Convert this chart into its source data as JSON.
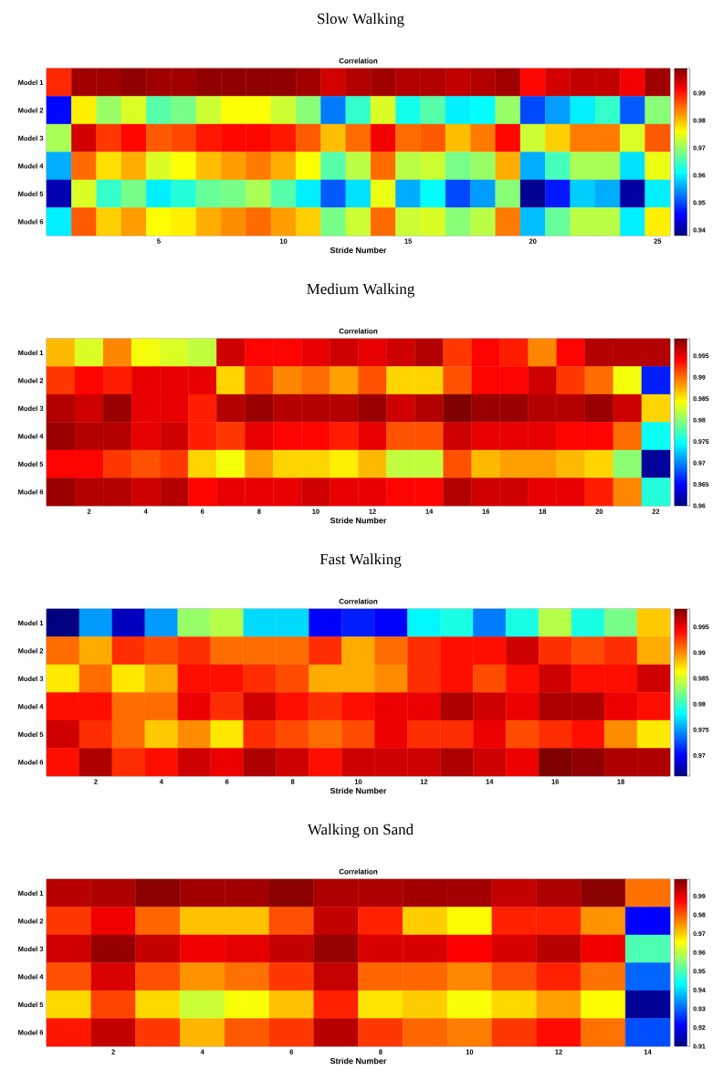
{
  "chart_data": [
    {
      "type": "heatmap",
      "title": "Slow Walking",
      "subtitle": "Correlation",
      "xlabel": "Stride Number",
      "x": [
        1,
        2,
        3,
        4,
        5,
        6,
        7,
        8,
        9,
        10,
        11,
        12,
        13,
        14,
        15,
        16,
        17,
        18,
        19,
        20,
        21,
        22,
        23,
        24,
        25
      ],
      "xlim": [
        0.5,
        25.5
      ],
      "xticks": [
        5,
        10,
        15,
        20,
        25
      ],
      "y_categories": [
        "Model 1",
        "Model 2",
        "Model 3",
        "Model 4",
        "Model 5",
        "Model 6"
      ],
      "cells": [
        [
          0.989,
          0.997,
          0.997,
          0.998,
          0.997,
          0.997,
          0.998,
          0.998,
          0.998,
          0.998,
          0.997,
          0.994,
          0.996,
          0.997,
          0.996,
          0.996,
          0.995,
          0.996,
          0.997,
          0.991,
          0.994,
          0.995,
          0.995,
          0.992,
          0.997
        ],
        [
          0.946,
          0.977,
          0.97,
          0.974,
          0.966,
          0.968,
          0.973,
          0.976,
          0.976,
          0.973,
          0.969,
          0.953,
          0.964,
          0.974,
          0.962,
          0.966,
          0.96,
          0.961,
          0.97,
          0.95,
          0.955,
          0.96,
          0.964,
          0.951,
          0.969
        ],
        [
          0.971,
          0.994,
          0.988,
          0.991,
          0.986,
          0.987,
          0.99,
          0.991,
          0.991,
          0.99,
          0.986,
          0.98,
          0.985,
          0.992,
          0.985,
          0.986,
          0.98,
          0.984,
          0.991,
          0.973,
          0.979,
          0.984,
          0.984,
          0.974,
          0.986
        ],
        [
          0.956,
          0.985,
          0.978,
          0.981,
          0.974,
          0.976,
          0.98,
          0.982,
          0.984,
          0.981,
          0.976,
          0.966,
          0.972,
          0.985,
          0.972,
          0.973,
          0.968,
          0.97,
          0.981,
          0.956,
          0.965,
          0.971,
          0.971,
          0.959,
          0.975
        ],
        [
          0.941,
          0.974,
          0.964,
          0.968,
          0.96,
          0.963,
          0.967,
          0.968,
          0.971,
          0.966,
          0.96,
          0.951,
          0.959,
          0.975,
          0.956,
          0.961,
          0.95,
          0.955,
          0.969,
          0.939,
          0.947,
          0.958,
          0.956,
          0.94,
          0.96
        ],
        [
          0.96,
          0.986,
          0.979,
          0.982,
          0.976,
          0.977,
          0.981,
          0.983,
          0.985,
          0.982,
          0.979,
          0.968,
          0.973,
          0.985,
          0.973,
          0.974,
          0.969,
          0.972,
          0.984,
          0.957,
          0.967,
          0.972,
          0.972,
          0.96,
          0.977
        ]
      ],
      "clim": [
        0.938,
        0.999
      ],
      "cticks": [
        0.94,
        0.95,
        0.96,
        0.97,
        0.98,
        0.99
      ]
    },
    {
      "type": "heatmap",
      "title": "Medium Walking",
      "subtitle": "Correlation",
      "xlabel": "Stride Number",
      "x": [
        1,
        2,
        3,
        4,
        5,
        6,
        7,
        8,
        9,
        10,
        11,
        12,
        13,
        14,
        15,
        16,
        17,
        18,
        19,
        20,
        21,
        22
      ],
      "xlim": [
        0.5,
        22.5
      ],
      "xticks": [
        2,
        4,
        6,
        8,
        10,
        12,
        14,
        16,
        18,
        20,
        22
      ],
      "y_categories": [
        "Model 1",
        "Model 2",
        "Model 3",
        "Model 4",
        "Model 5",
        "Model 6"
      ],
      "cells": [
        [
          0.987,
          0.983,
          0.989,
          0.984,
          0.983,
          0.982,
          0.996,
          0.994,
          0.994,
          0.995,
          0.996,
          0.995,
          0.996,
          0.997,
          0.992,
          0.994,
          0.993,
          0.989,
          0.994,
          0.997,
          0.997,
          0.997
        ],
        [
          0.992,
          0.994,
          0.993,
          0.995,
          0.995,
          0.995,
          0.986,
          0.992,
          0.989,
          0.99,
          0.988,
          0.991,
          0.986,
          0.986,
          0.991,
          0.994,
          0.994,
          0.996,
          0.992,
          0.99,
          0.984,
          0.966
        ],
        [
          0.997,
          0.996,
          0.998,
          0.995,
          0.995,
          0.993,
          0.997,
          0.998,
          0.997,
          0.997,
          0.997,
          0.998,
          0.996,
          0.997,
          0.999,
          0.998,
          0.998,
          0.997,
          0.997,
          0.998,
          0.996,
          0.986
        ],
        [
          0.998,
          0.997,
          0.997,
          0.995,
          0.996,
          0.993,
          0.992,
          0.995,
          0.994,
          0.994,
          0.993,
          0.995,
          0.991,
          0.991,
          0.996,
          0.995,
          0.995,
          0.995,
          0.994,
          0.994,
          0.99,
          0.975
        ],
        [
          0.994,
          0.994,
          0.992,
          0.991,
          0.992,
          0.986,
          0.984,
          0.988,
          0.986,
          0.986,
          0.985,
          0.987,
          0.982,
          0.982,
          0.991,
          0.987,
          0.988,
          0.988,
          0.987,
          0.986,
          0.98,
          0.961
        ],
        [
          0.998,
          0.997,
          0.997,
          0.996,
          0.997,
          0.994,
          0.995,
          0.995,
          0.995,
          0.996,
          0.995,
          0.995,
          0.994,
          0.994,
          0.997,
          0.996,
          0.996,
          0.995,
          0.995,
          0.993,
          0.989,
          0.976
        ]
      ],
      "clim": [
        0.96,
        0.999
      ],
      "cticks": [
        0.96,
        0.965,
        0.97,
        0.975,
        0.98,
        0.985,
        0.99,
        0.995
      ]
    },
    {
      "type": "heatmap",
      "title": "Fast Walking",
      "subtitle": "Correlation",
      "xlabel": "Stride Number",
      "x": [
        1,
        2,
        3,
        4,
        5,
        6,
        7,
        8,
        9,
        10,
        11,
        12,
        13,
        14,
        15,
        16,
        17,
        18,
        19
      ],
      "xlim": [
        0.5,
        19.5
      ],
      "xticks": [
        2,
        4,
        6,
        8,
        10,
        12,
        14,
        16,
        18
      ],
      "y_categories": [
        "Model 1",
        "Model 2",
        "Model 3",
        "Model 4",
        "Model 5",
        "Model 6"
      ],
      "cells": [
        [
          0.966,
          0.975,
          0.968,
          0.975,
          0.983,
          0.984,
          0.977,
          0.977,
          0.97,
          0.971,
          0.97,
          0.978,
          0.979,
          0.974,
          0.979,
          0.984,
          0.979,
          0.982,
          0.988
        ],
        [
          0.991,
          0.989,
          0.993,
          0.992,
          0.993,
          0.991,
          0.991,
          0.991,
          0.993,
          0.989,
          0.991,
          0.993,
          0.994,
          0.994,
          0.996,
          0.993,
          0.992,
          0.993,
          0.989
        ],
        [
          0.987,
          0.991,
          0.987,
          0.989,
          0.994,
          0.994,
          0.993,
          0.992,
          0.989,
          0.989,
          0.99,
          0.993,
          0.994,
          0.992,
          0.994,
          0.996,
          0.994,
          0.994,
          0.996
        ],
        [
          0.994,
          0.994,
          0.991,
          0.991,
          0.995,
          0.993,
          0.996,
          0.994,
          0.993,
          0.994,
          0.995,
          0.995,
          0.997,
          0.996,
          0.995,
          0.997,
          0.997,
          0.995,
          0.994
        ],
        [
          0.996,
          0.993,
          0.991,
          0.988,
          0.99,
          0.987,
          0.993,
          0.992,
          0.991,
          0.992,
          0.995,
          0.993,
          0.993,
          0.995,
          0.992,
          0.993,
          0.994,
          0.99,
          0.987
        ],
        [
          0.994,
          0.997,
          0.993,
          0.994,
          0.996,
          0.995,
          0.997,
          0.996,
          0.994,
          0.996,
          0.996,
          0.996,
          0.997,
          0.996,
          0.995,
          0.9985,
          0.998,
          0.997,
          0.997
        ]
      ],
      "clim": [
        0.966,
        0.9985
      ],
      "cticks": [
        0.97,
        0.975,
        0.98,
        0.985,
        0.99,
        0.995
      ]
    },
    {
      "type": "heatmap",
      "title": "Walking on Sand",
      "subtitle": "Correlation",
      "xlabel": "Stride Number",
      "x": [
        1,
        2,
        3,
        4,
        5,
        6,
        7,
        8,
        9,
        10,
        11,
        12,
        13,
        14
      ],
      "xlim": [
        0.5,
        14.5
      ],
      "xticks": [
        2,
        4,
        6,
        8,
        10,
        12,
        14
      ],
      "y_categories": [
        "Model 1",
        "Model 2",
        "Model 3",
        "Model 4",
        "Model 5",
        "Model 6"
      ],
      "cells": [
        [
          0.994,
          0.995,
          0.998,
          0.996,
          0.996,
          0.998,
          0.995,
          0.995,
          0.996,
          0.996,
          0.993,
          0.995,
          0.998,
          0.978
        ],
        [
          0.983,
          0.989,
          0.979,
          0.971,
          0.971,
          0.981,
          0.993,
          0.985,
          0.97,
          0.966,
          0.985,
          0.985,
          0.975,
          0.921
        ],
        [
          0.992,
          0.997,
          0.993,
          0.989,
          0.99,
          0.993,
          0.997,
          0.991,
          0.991,
          0.988,
          0.991,
          0.994,
          0.989,
          0.95
        ],
        [
          0.981,
          0.991,
          0.981,
          0.975,
          0.978,
          0.983,
          0.993,
          0.979,
          0.979,
          0.976,
          0.981,
          0.985,
          0.978,
          0.93
        ],
        [
          0.969,
          0.982,
          0.969,
          0.961,
          0.965,
          0.971,
          0.985,
          0.968,
          0.97,
          0.965,
          0.969,
          0.974,
          0.966,
          0.912
        ],
        [
          0.986,
          0.993,
          0.983,
          0.972,
          0.98,
          0.983,
          0.994,
          0.983,
          0.979,
          0.977,
          0.983,
          0.987,
          0.978,
          0.928
        ]
      ],
      "clim": [
        0.91,
        0.999
      ],
      "cticks": [
        0.91,
        0.92,
        0.93,
        0.94,
        0.95,
        0.96,
        0.97,
        0.98,
        0.99
      ]
    }
  ]
}
